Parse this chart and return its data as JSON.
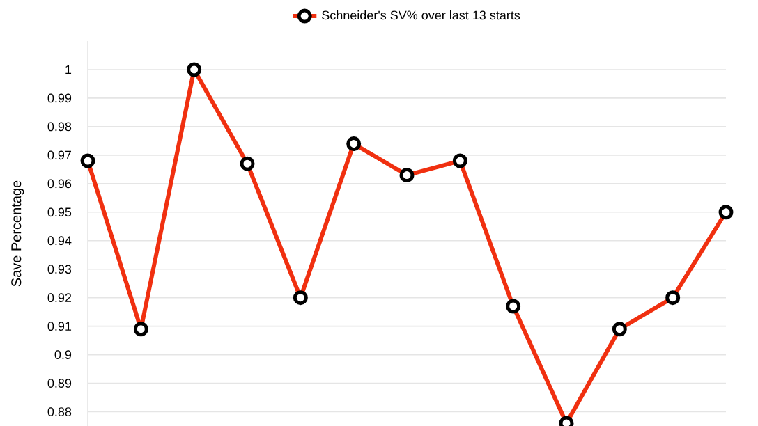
{
  "chart_data": {
    "type": "line",
    "ylabel": "Save Percentage",
    "legend": "top",
    "marker": "circle",
    "grid": "y",
    "categories": [
      null,
      null,
      null,
      null,
      null,
      null,
      null,
      null,
      null,
      null,
      null,
      null,
      null
    ],
    "series": [
      {
        "name": "Schneider's SV% over last 13 starts",
        "color": "#f03010",
        "values": [
          0.968,
          0.909,
          1,
          0.967,
          0.92,
          0.974,
          0.963,
          0.968,
          0.917,
          0.876,
          0.909,
          0.92,
          0.95
        ]
      }
    ],
    "ylim": [
      0.875,
      1.01
    ],
    "yticks": [
      0.88,
      0.89,
      0.9,
      0.91,
      0.92,
      0.93,
      0.94,
      0.95,
      0.96,
      0.97,
      0.98,
      0.99,
      1
    ]
  }
}
